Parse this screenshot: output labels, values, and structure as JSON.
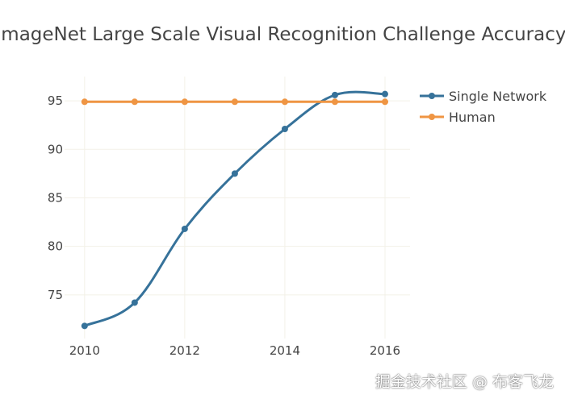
{
  "chart_data": {
    "type": "line",
    "title": "ImageNet Large Scale Visual Recognition Challenge Accuracy",
    "xlabel": "",
    "ylabel": "",
    "x": [
      2010,
      2011,
      2012,
      2013,
      2014,
      2015,
      2016
    ],
    "xlim": [
      2009.6,
      2016.5
    ],
    "ylim": [
      70.5,
      97.5
    ],
    "xticks": [
      2010,
      2012,
      2014,
      2016
    ],
    "yticks": [
      75,
      80,
      85,
      90,
      95
    ],
    "grid": true,
    "legend": "top-right",
    "series": [
      {
        "name": "Single Network",
        "color": "#36729a",
        "values": [
          71.8,
          74.2,
          81.8,
          87.5,
          92.1,
          95.6,
          95.7
        ]
      },
      {
        "name": "Human",
        "color": "#ef9543",
        "values": [
          94.9,
          94.9,
          94.9,
          94.9,
          94.9,
          94.9,
          94.9
        ]
      }
    ]
  },
  "watermark": "掘金技术社区 @ 布客飞龙"
}
